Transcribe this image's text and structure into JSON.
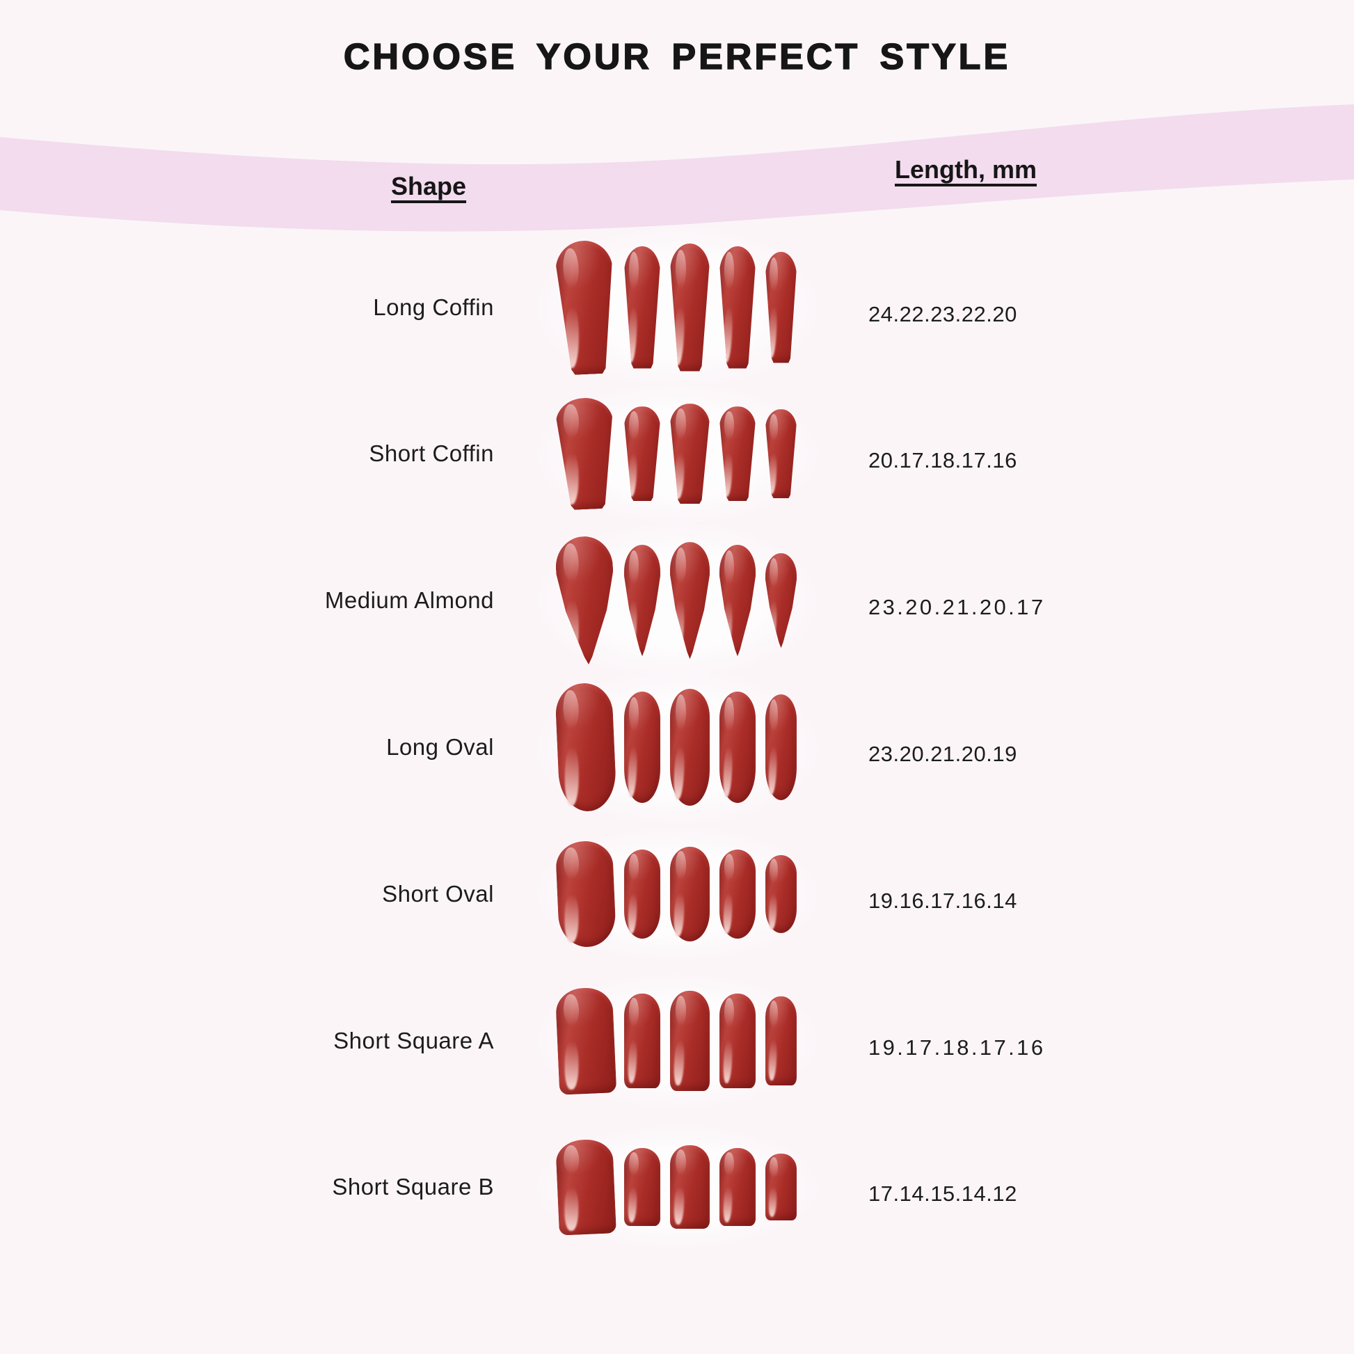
{
  "title": "CHOOSE YOUR PERFECT STYLE",
  "table": {
    "shape_header": "Shape",
    "length_header": "Length, mm",
    "rows": [
      {
        "shape": "Long Coffin",
        "lengths": "24.22.23.22.20",
        "style": "coffin",
        "tracked": false
      },
      {
        "shape": "Short Coffin",
        "lengths": "20.17.18.17.16",
        "style": "coffin",
        "tracked": false
      },
      {
        "shape": "Medium Almond",
        "lengths": "23.20.21.20.17",
        "style": "almond",
        "tracked": true
      },
      {
        "shape": "Long Oval",
        "lengths": "23.20.21.20.19",
        "style": "oval",
        "tracked": false
      },
      {
        "shape": "Short Oval",
        "lengths": "19.16.17.16.14",
        "style": "oval",
        "tracked": false
      },
      {
        "shape": "Short Square A",
        "lengths": "19.17.18.17.16",
        "style": "square",
        "tracked": true
      },
      {
        "shape": "Short Square B",
        "lengths": "17.14.15.14.12",
        "style": "square",
        "tracked": false
      }
    ]
  },
  "chart_data": {
    "type": "table",
    "columns": [
      "Shape",
      "Length, mm"
    ],
    "rows": [
      [
        "Long Coffin",
        "24.22.23.22.20"
      ],
      [
        "Short Coffin",
        "20.17.18.17.16"
      ],
      [
        "Medium Almond",
        "23.20.21.20.17"
      ],
      [
        "Long Oval",
        "23.20.21.20.19"
      ],
      [
        "Short Oval",
        "19.16.17.16.14"
      ],
      [
        "Short Square A",
        "19.17.18.17.16"
      ],
      [
        "Short Square B",
        "17.14.15.14.12"
      ]
    ],
    "lengths_mm": {
      "Long Coffin": [
        24,
        22,
        23,
        22,
        20
      ],
      "Short Coffin": [
        20,
        17,
        18,
        17,
        16
      ],
      "Medium Almond": [
        23,
        20,
        21,
        20,
        17
      ],
      "Long Oval": [
        23,
        20,
        21,
        20,
        19
      ],
      "Short Oval": [
        19,
        16,
        17,
        16,
        14
      ],
      "Short Square A": [
        19,
        17,
        18,
        17,
        16
      ],
      "Short Square B": [
        17,
        14,
        15,
        14,
        12
      ]
    },
    "title": "CHOOSE YOUR PERFECT STYLE"
  },
  "colors": {
    "page_bg": "#fbf5f8",
    "band_pink": "#f2dcee",
    "text_black": "#161616",
    "nail_red": "#a92c27",
    "nail_red_dark": "#8e201d",
    "nail_red_light": "#bc423c",
    "nail_highlight": "#f0c3bf",
    "photo_white": "#fefdfe"
  }
}
